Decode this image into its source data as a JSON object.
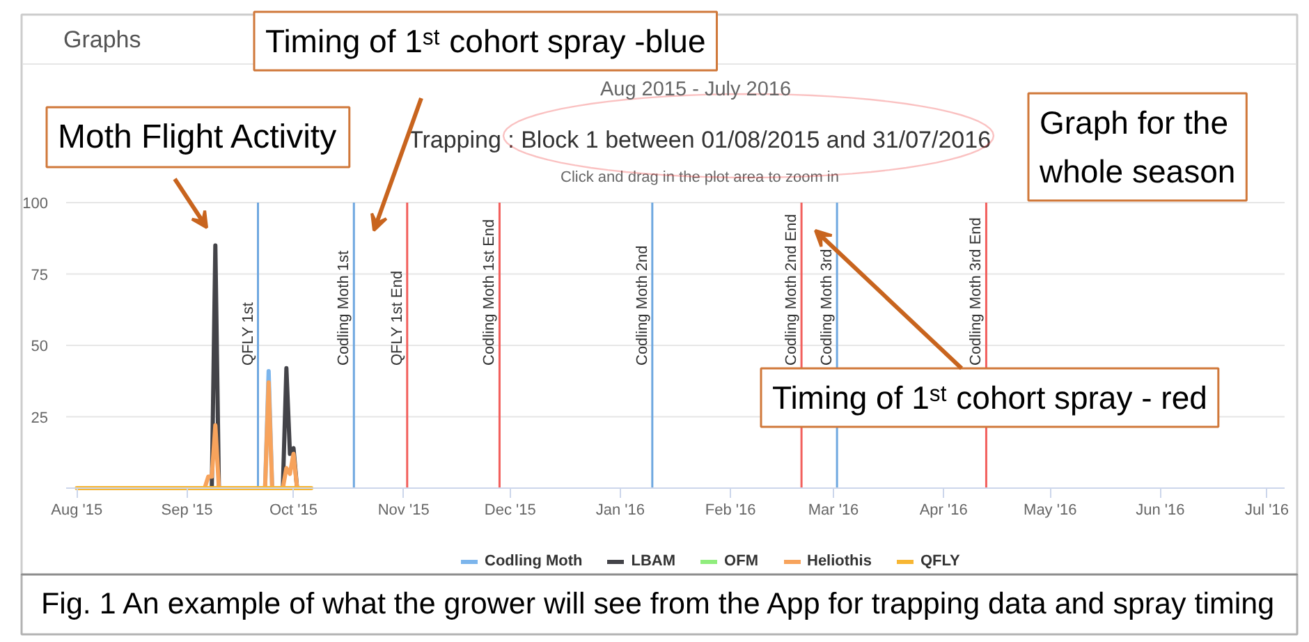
{
  "chart_data": {
    "type": "line",
    "title": "Trapping : Block 1 between 01/08/2015 and 31/07/2016",
    "subtitle": "Click and drag in the plot area to zoom in",
    "annotations": [
      "Graphs",
      "Aug 2015 - July 2016",
      "Timing of 1ˢᵗ cohort spray -blue",
      "Moth Flight Activity",
      "Graph for the whole season",
      "Timing of 1ˢᵗ cohort spray - red",
      "Fig. 1 An example of what the grower will see from the App for trapping data and spray timing"
    ],
    "xlim": [
      "2015-07-29",
      "2016-07-06"
    ],
    "ylim": [
      0,
      100
    ],
    "xticks": [
      {
        "value": "2015-08-01",
        "label": "Aug '15"
      },
      {
        "value": "2015-09-01",
        "label": "Sep '15"
      },
      {
        "value": "2015-10-01",
        "label": "Oct '15"
      },
      {
        "value": "2015-11-01",
        "label": "Nov '15"
      },
      {
        "value": "2015-12-01",
        "label": "Dec '15"
      },
      {
        "value": "2016-01-01",
        "label": "Jan '16"
      },
      {
        "value": "2016-02-01",
        "label": "Feb '16"
      },
      {
        "value": "2016-03-01",
        "label": "Mar '16"
      },
      {
        "value": "2016-04-01",
        "label": "Apr '16"
      },
      {
        "value": "2016-05-01",
        "label": "May '16"
      },
      {
        "value": "2016-06-01",
        "label": "Jun '16"
      },
      {
        "value": "2016-07-01",
        "label": "Jul '16"
      }
    ],
    "yticks": [
      25,
      50,
      75,
      100
    ],
    "grid": "y",
    "legend": "bottom",
    "series": [
      {
        "name": "Codling Moth",
        "color": "#7cb5ec",
        "x": [
          "2015-09-23",
          "2015-09-24",
          "2015-09-25"
        ],
        "values": [
          0,
          41,
          0
        ]
      },
      {
        "name": "LBAM",
        "color": "#434348",
        "x": [
          "2015-09-08",
          "2015-09-09",
          "2015-09-10",
          "2015-09-20",
          "2015-09-28",
          "2015-09-29",
          "2015-09-30",
          "2015-10-01",
          "2015-10-02"
        ],
        "values": [
          0,
          85,
          0,
          null,
          0,
          42,
          12,
          14,
          0
        ]
      },
      {
        "name": "OFM",
        "color": "#90ed7d"
      },
      {
        "name": "Heliothis",
        "color": "#f7a35c",
        "x": [
          "2015-09-06",
          "2015-09-07",
          "2015-09-08",
          "2015-09-09",
          "2015-09-10",
          "2015-09-16",
          "2015-09-23",
          "2015-09-24",
          "2015-09-25",
          "2015-09-26",
          "2015-09-28",
          "2015-09-29",
          "2015-09-30",
          "2015-10-01",
          "2015-10-02"
        ],
        "values": [
          0,
          4,
          4,
          22,
          0,
          null,
          0,
          37,
          0,
          null,
          0,
          7,
          5,
          12,
          0
        ]
      },
      {
        "name": "QFLY",
        "color": "#f7b633",
        "x": [
          "2015-08-01",
          "2015-10-06"
        ],
        "values": [
          0,
          0
        ]
      }
    ],
    "ref_lines": [
      {
        "axis": "x",
        "value": "2015-09-21",
        "label": "QFLY 1st",
        "color": "#6fa8e0"
      },
      {
        "axis": "x",
        "value": "2015-10-18",
        "label": "Codling Moth 1st",
        "color": "#6fa8e0"
      },
      {
        "axis": "x",
        "value": "2015-11-02",
        "label": "QFLY 1st End",
        "color": "#f25f5c"
      },
      {
        "axis": "x",
        "value": "2015-11-28",
        "label": "Codling Moth 1st End",
        "color": "#f25f5c"
      },
      {
        "axis": "x",
        "value": "2016-01-10",
        "label": "Codling Moth 2nd",
        "color": "#6fa8e0"
      },
      {
        "axis": "x",
        "value": "2016-02-21",
        "label": "Codling Moth 2nd End",
        "color": "#f25f5c"
      },
      {
        "axis": "x",
        "value": "2016-03-02",
        "label": "Codling Moth 3rd",
        "color": "#6fa8e0"
      },
      {
        "axis": "x",
        "value": "2016-04-13",
        "label": "Codling Moth 3rd End",
        "color": "#f25f5c"
      }
    ]
  }
}
